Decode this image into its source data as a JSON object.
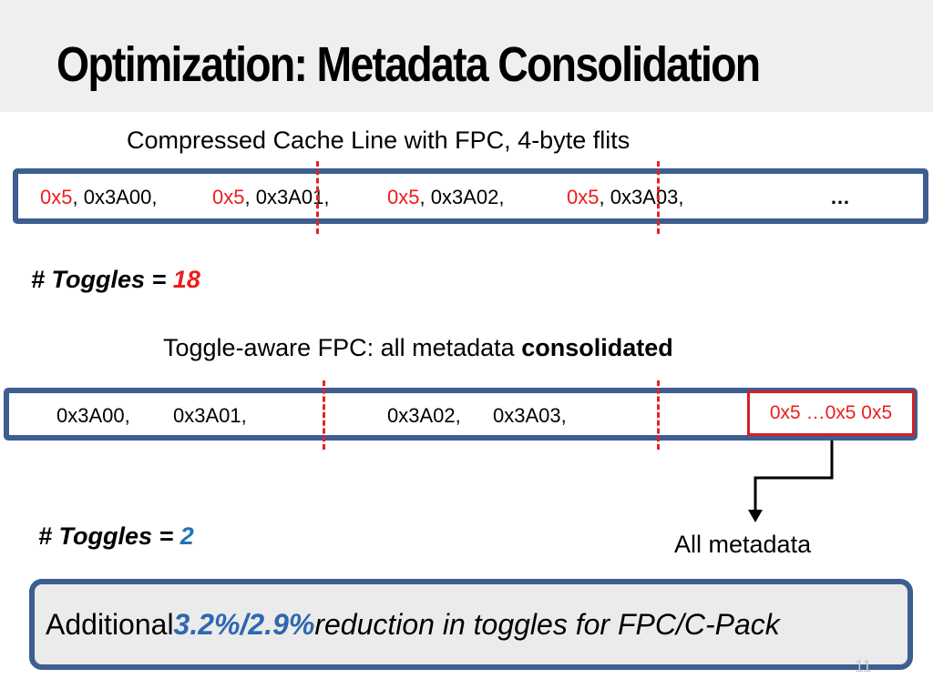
{
  "slide": {
    "title": "Optimization: Metadata Consolidation",
    "page_number": "11"
  },
  "baseline": {
    "caption": "Compressed Cache Line with FPC, 4-byte flits",
    "words": [
      {
        "meta": "0x5",
        "rest": ", 0x3A00,"
      },
      {
        "meta": "0x5",
        "rest": ", 0x3A01,"
      },
      {
        "meta": "0x5",
        "rest": ", 0x3A02,"
      },
      {
        "meta": "0x5",
        "rest": ", 0x3A03,"
      }
    ],
    "ellipsis": "…",
    "toggles_label": "# Toggles = ",
    "toggles_value": "18",
    "toggles_color": "#ee1c1c"
  },
  "consolidated": {
    "caption_prefix": "Toggle-aware FPC: all metadata ",
    "caption_bold": "consolidated",
    "words": [
      "0x3A00,",
      "0x3A01,",
      "0x3A02,",
      "0x3A03,"
    ],
    "metadata_box": "0x5 …0x5 0x5",
    "toggles_label": "# Toggles = ",
    "toggles_value": "2",
    "toggles_color": "#1f73b7",
    "arrow_label": "All metadata"
  },
  "summary": {
    "prefix": "Additional ",
    "highlight": "3.2%/2.9%",
    "suffix": " reduction in toggles for FPC/C-Pack"
  },
  "colors": {
    "box_border": "#3c5e91",
    "metadata": "#ee1c1c",
    "flit_divider": "#e52222",
    "highlight": "#2e67b1"
  }
}
